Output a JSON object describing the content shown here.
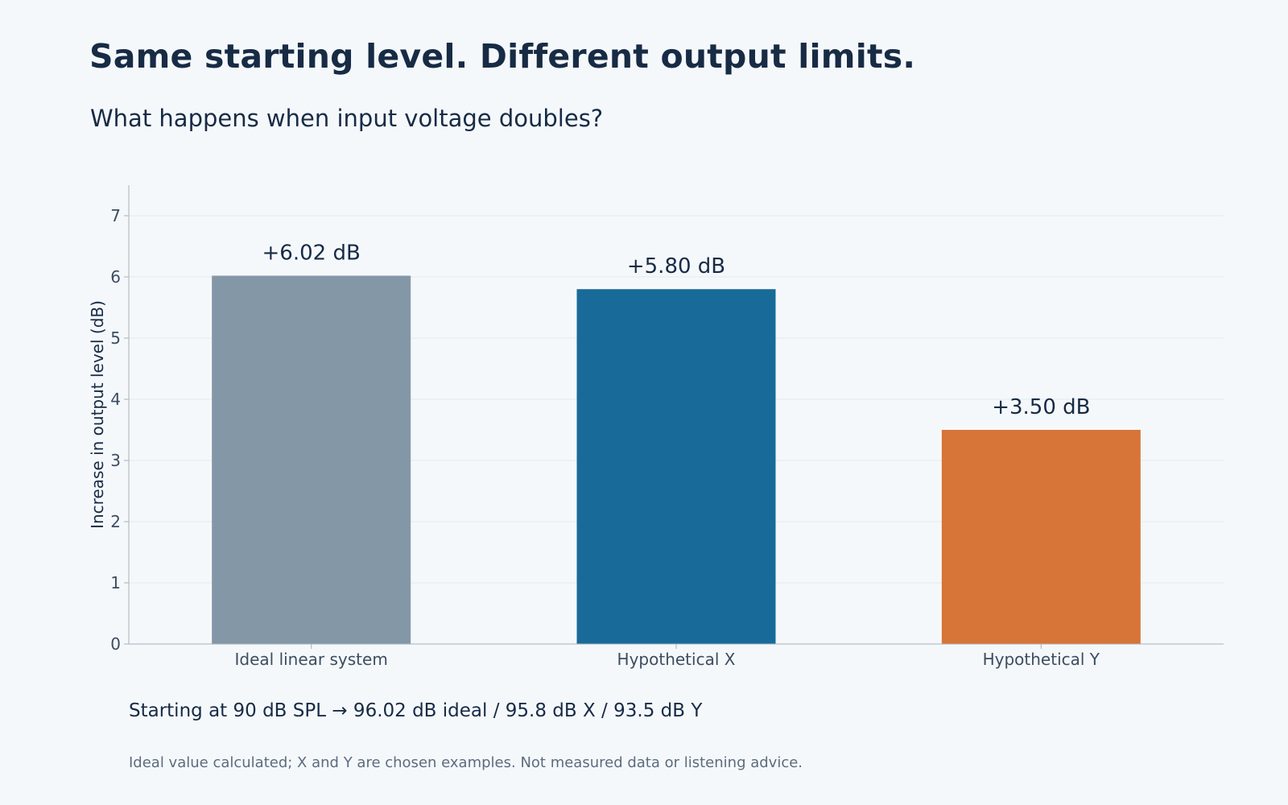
{
  "title": "Same starting level. Different output limits.",
  "subtitle": "What happens when input voltage doubles?",
  "summary": "Starting at 90 dB SPL → 96.02 dB ideal / 95.8 dB X / 93.5 dB Y",
  "footnote": "Ideal value calculated; X and Y are chosen examples. Not measured data or listening advice.",
  "colors": {
    "background": "#f5f8fb",
    "text": "#172b45",
    "axis_text": "#3d4d60",
    "grid": "#e4eaf0",
    "axis_line": "#a7b0ba"
  },
  "chart_data": {
    "type": "bar",
    "categories": [
      "Ideal linear system",
      "Hypothetical X",
      "Hypothetical Y"
    ],
    "values": [
      6.02,
      5.8,
      3.5
    ],
    "data_labels": [
      "+6.02 dB",
      "+5.80 dB",
      "+3.50 dB"
    ],
    "bar_colors": [
      "#8497a7",
      "#186b99",
      "#d67537"
    ],
    "xlabel": "",
    "ylabel": "Increase in output level (dB)",
    "ylim": [
      0,
      7.5
    ],
    "yticks": [
      0,
      1,
      2,
      3,
      4,
      5,
      6,
      7
    ],
    "grid": true,
    "legend": "none"
  }
}
